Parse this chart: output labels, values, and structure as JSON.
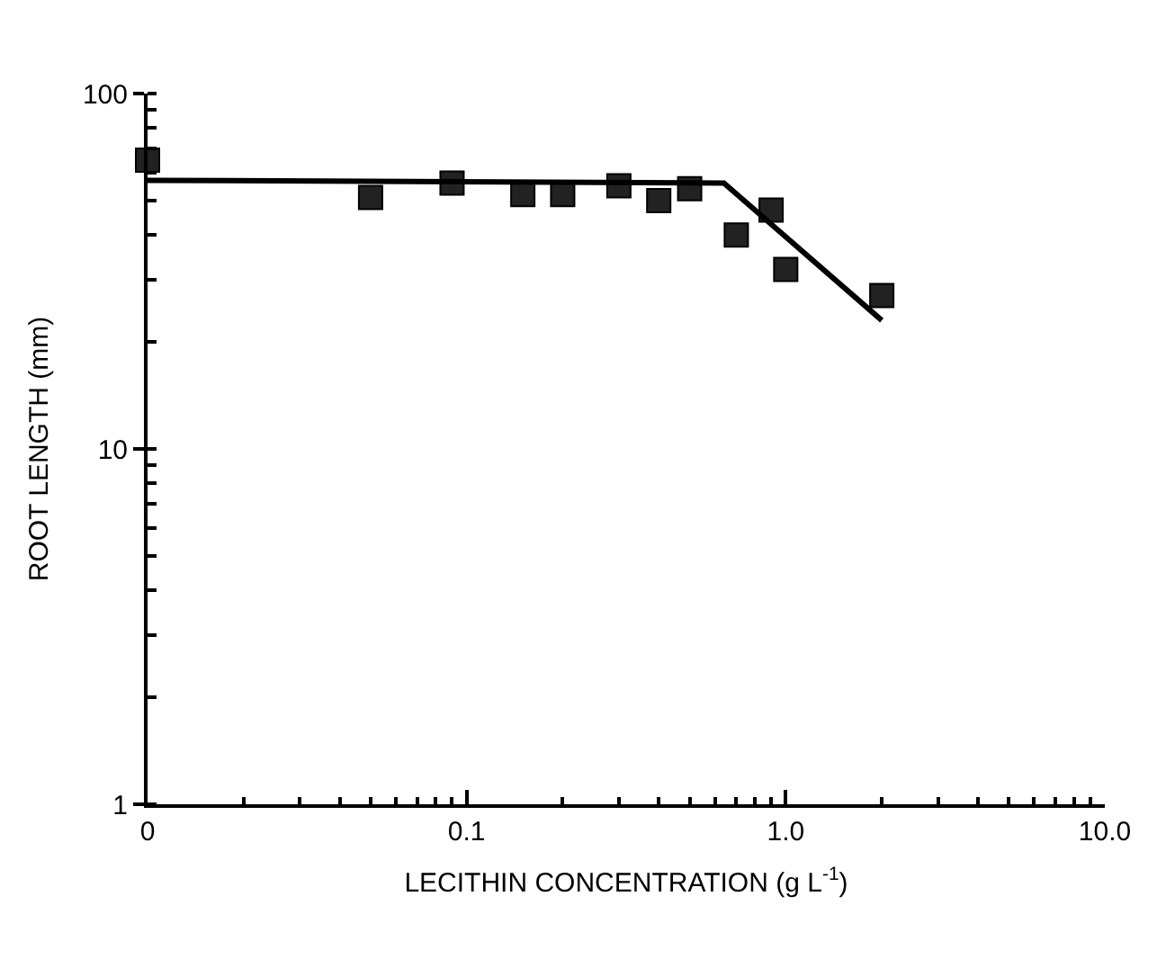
{
  "chart_data": {
    "type": "scatter",
    "xlabel": "LECITHIN CONCENTRATION (g L$^{-1}$)",
    "ylabel": "ROOT LENGTH (mm)",
    "log": "xy",
    "xlim": [
      0.01,
      10
    ],
    "xticks": [
      {
        "value": 0.01,
        "label": "0"
      },
      0.1,
      {
        "value": 1,
        "label": "1.0"
      },
      {
        "value": 10,
        "label": "10.0"
      }
    ],
    "ylim": [
      1,
      100
    ],
    "yticks": [
      1,
      10,
      100
    ],
    "marker": "square",
    "series": [
      {
        "color": "#222222",
        "x": [
          0.01,
          0.05,
          0.09,
          0.15,
          0.2,
          0.3,
          0.4,
          0.5,
          0.7,
          0.9,
          1.0,
          2.0
        ],
        "values": [
          65,
          51,
          56,
          52,
          52,
          55,
          50,
          54,
          40,
          47,
          32,
          27
        ]
      },
      {
        "type": "line",
        "color": "#000000",
        "marker": "none",
        "line_style": "solid",
        "x": [
          0.01,
          0.64,
          2.0
        ],
        "values": [
          57,
          56,
          23
        ]
      }
    ]
  }
}
